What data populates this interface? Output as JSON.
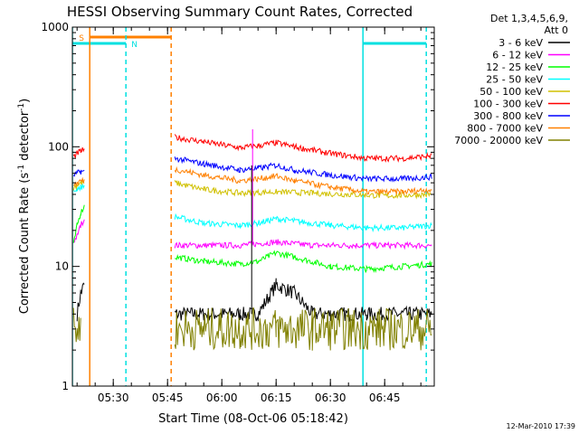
{
  "chart_data": {
    "type": "line",
    "title": "HESSI Observing Summary Count Rates, Corrected",
    "xlabel": "Start Time (08-Oct-06 05:18:42)",
    "ylabel": "Corrected Count Rate (s-1 detector-1)",
    "ylabel_parts": {
      "pre": "Corrected Count Rate (s",
      "sup1": "-1",
      "mid": " detector",
      "sup2": "-1",
      "post": ")"
    },
    "yscale": "log",
    "ylim": [
      1,
      1000
    ],
    "yticks": [
      "1",
      "10",
      "100",
      "1000"
    ],
    "xlim": [
      "05:18:42",
      "06:58:42"
    ],
    "xticks": [
      "05:30",
      "05:45",
      "06:00",
      "06:15",
      "06:30",
      "06:45"
    ],
    "timestamp": "12-Mar-2010 17:39",
    "legend": {
      "header": [
        "Det 1,3,4,5,6,9,",
        "Att 0"
      ],
      "placement": "right"
    },
    "flags": [
      {
        "label": "S",
        "color": "#ff8000",
        "start": "05:23:30",
        "end": "05:46:00"
      },
      {
        "label": "N",
        "color": "#00e0e0",
        "start": "05:18:42",
        "end": "05:33:30"
      },
      {
        "label": "",
        "color": "#00e0e0",
        "start": "06:39:00",
        "end": "06:56:30"
      }
    ],
    "vlines": [
      {
        "time": "05:23:30",
        "color": "#ff8000",
        "style": "solid"
      },
      {
        "time": "05:46:00",
        "color": "#ff8000",
        "style": "dashed"
      },
      {
        "time": "05:33:30",
        "color": "#00e0e0",
        "style": "dashed"
      },
      {
        "time": "06:39:00",
        "color": "#00e0e0",
        "style": "solid"
      },
      {
        "time": "06:56:30",
        "color": "#00e0e0",
        "style": "dashed"
      },
      {
        "time": "05:18:42",
        "color": "#00e0e0",
        "style": "solid"
      }
    ],
    "series": [
      {
        "name": "3 - 6 keV",
        "color": "#000000",
        "x": [
          "05:20",
          "05:21",
          "05:22",
          "05:47",
          "05:55",
          "06:05",
          "06:10",
          "06:15",
          "06:20",
          "06:25",
          "06:30",
          "06:40",
          "06:50",
          "06:58"
        ],
        "y": [
          4,
          6,
          7,
          4,
          4,
          4,
          4,
          7,
          6,
          4,
          4,
          4,
          4,
          4
        ]
      },
      {
        "name": "6 - 12 keV",
        "color": "#ff00ff",
        "x": [
          "05:19",
          "05:20",
          "05:21",
          "05:22",
          "05:47",
          "05:55",
          "06:05",
          "06:15",
          "06:25",
          "06:35",
          "06:45",
          "06:58"
        ],
        "y": [
          16,
          18,
          22,
          25,
          15,
          15,
          15,
          16,
          15,
          15,
          15,
          15
        ]
      },
      {
        "name": "12 - 25 keV",
        "color": "#00ff00",
        "x": [
          "05:19",
          "05:20",
          "05:21",
          "05:22",
          "05:47",
          "05:55",
          "06:05",
          "06:10",
          "06:15",
          "06:20",
          "06:30",
          "06:40",
          "06:50",
          "06:58"
        ],
        "y": [
          15,
          22,
          28,
          32,
          12,
          11,
          10.5,
          11,
          13,
          12,
          10,
          9.5,
          10,
          10.5
        ]
      },
      {
        "name": "25 - 50 keV",
        "color": "#00ffff",
        "x": [
          "05:19",
          "05:20",
          "05:21",
          "05:22",
          "05:47",
          "05:55",
          "06:05",
          "06:10",
          "06:15",
          "06:20",
          "06:30",
          "06:40",
          "06:50",
          "06:58"
        ],
        "y": [
          42,
          45,
          46,
          47,
          26,
          23,
          22,
          23,
          25,
          24,
          22,
          21,
          21,
          22
        ]
      },
      {
        "name": "50 - 100 keV",
        "color": "#d0c000",
        "x": [
          "05:19",
          "05:20",
          "05:21",
          "05:22",
          "05:47",
          "05:55",
          "06:05",
          "06:15",
          "06:25",
          "06:35",
          "06:45",
          "06:58"
        ],
        "y": [
          45,
          48,
          50,
          50,
          50,
          44,
          41,
          42,
          41,
          40,
          39,
          40
        ]
      },
      {
        "name": "100 - 300 keV",
        "color": "#ff0000",
        "x": [
          "05:19",
          "05:20",
          "05:21",
          "05:22",
          "05:47",
          "05:55",
          "06:05",
          "06:10",
          "06:15",
          "06:20",
          "06:30",
          "06:40",
          "06:50",
          "06:58"
        ],
        "y": [
          82,
          88,
          92,
          95,
          120,
          110,
          98,
          102,
          108,
          100,
          88,
          80,
          80,
          84
        ]
      },
      {
        "name": "300 - 800 keV",
        "color": "#0000ff",
        "x": [
          "05:19",
          "05:20",
          "05:21",
          "05:22",
          "05:47",
          "05:55",
          "06:05",
          "06:10",
          "06:15",
          "06:20",
          "06:30",
          "06:40",
          "06:50",
          "06:58"
        ],
        "y": [
          58,
          60,
          62,
          62,
          80,
          72,
          64,
          66,
          70,
          64,
          58,
          54,
          54,
          56
        ]
      },
      {
        "name": "800 - 7000 keV",
        "color": "#ff8000",
        "x": [
          "05:19",
          "05:20",
          "05:21",
          "05:22",
          "05:47",
          "05:55",
          "06:05",
          "06:10",
          "06:15",
          "06:20",
          "06:30",
          "06:40",
          "06:50",
          "06:58"
        ],
        "y": [
          48,
          50,
          52,
          52,
          65,
          58,
          52,
          54,
          57,
          52,
          46,
          42,
          42,
          44
        ]
      },
      {
        "name": "7000 - 20000 keV",
        "color": "#808000",
        "x": [
          "05:19",
          "05:21",
          "05:47",
          "05:55",
          "06:05",
          "06:15",
          "06:25",
          "06:35",
          "06:45",
          "06:58"
        ],
        "y": [
          3,
          3,
          3,
          3,
          3,
          3,
          3,
          3,
          3,
          3
        ]
      }
    ],
    "annotations": [
      {
        "time": "06:08:30",
        "y": 140,
        "color": "#ff00ff",
        "note": "spike"
      }
    ]
  }
}
